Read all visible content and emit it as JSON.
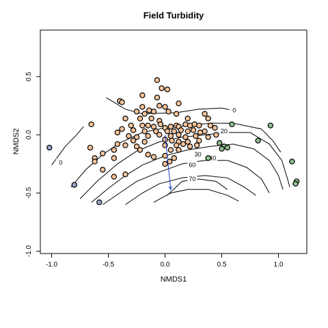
{
  "chart_data": {
    "type": "scatter",
    "title": "Field Turbidity",
    "xlabel": "NMDS1",
    "ylabel": "NMDS2",
    "xlim": [
      -1.1,
      1.25
    ],
    "ylim": [
      -1.02,
      0.9
    ],
    "x_ticks": [
      -1.0,
      -0.5,
      0.0,
      0.5,
      1.0
    ],
    "x_tick_labels": [
      "-1.0",
      "-0.5",
      "0.0",
      "0.5",
      "1.0"
    ],
    "y_ticks": [
      -1.0,
      -0.5,
      0.0,
      0.5
    ],
    "y_tick_labels": [
      "-1.0",
      "-0.5",
      "0.0",
      "0.5"
    ],
    "grid": false,
    "legend": "none",
    "colors": {
      "orange": "#f5c39a",
      "green": "#8fbc8f",
      "blue": "#9aa4c8",
      "contour": "#000000",
      "vector": "#1a3ccc"
    },
    "vector": {
      "from": [
        0.0,
        0.0
      ],
      "to": [
        0.05,
        -0.47
      ]
    },
    "contour_labels": [
      {
        "text": "0",
        "x": 0.61,
        "y": 0.21
      },
      {
        "text": "20",
        "x": 0.52,
        "y": 0.03
      },
      {
        "text": "40",
        "x": 0.42,
        "y": -0.2
      },
      {
        "text": "60",
        "x": 0.24,
        "y": -0.26
      },
      {
        "text": "70",
        "x": 0.24,
        "y": -0.38
      },
      {
        "text": "0",
        "x": -0.92,
        "y": -0.24
      },
      {
        "text": "30",
        "x": 0.29,
        "y": -0.17
      }
    ],
    "contours": [
      [
        [
          -1.0,
          -0.26
        ],
        [
          -0.88,
          -0.1
        ],
        [
          -0.78,
          0.0
        ],
        [
          -0.72,
          0.07
        ]
      ],
      [
        [
          -0.52,
          0.32
        ],
        [
          -0.35,
          0.22
        ],
        [
          -0.2,
          0.18
        ],
        [
          0.1,
          0.19
        ],
        [
          0.3,
          0.22
        ],
        [
          0.5,
          0.23
        ],
        [
          0.65,
          0.2
        ]
      ],
      [
        [
          -0.83,
          -0.45
        ],
        [
          -0.7,
          -0.3
        ],
        [
          -0.55,
          -0.17
        ],
        [
          -0.4,
          -0.07
        ],
        [
          -0.2,
          0.02
        ],
        [
          0.0,
          0.06
        ],
        [
          0.2,
          0.08
        ],
        [
          0.4,
          0.1
        ],
        [
          0.6,
          0.1
        ],
        [
          0.85,
          0.05
        ],
        [
          0.95,
          -0.05
        ],
        [
          1.02,
          -0.15
        ]
      ],
      [
        [
          -0.75,
          -0.55
        ],
        [
          -0.6,
          -0.4
        ],
        [
          -0.42,
          -0.25
        ],
        [
          -0.25,
          -0.14
        ],
        [
          -0.05,
          -0.06
        ],
        [
          0.15,
          -0.02
        ],
        [
          0.35,
          0.0
        ],
        [
          0.55,
          0.02
        ],
        [
          0.75,
          0.02
        ],
        [
          0.92,
          -0.08
        ],
        [
          1.03,
          -0.22
        ],
        [
          1.08,
          -0.38
        ],
        [
          1.1,
          -0.45
        ]
      ],
      [
        [
          -0.65,
          -0.58
        ],
        [
          -0.5,
          -0.46
        ],
        [
          -0.35,
          -0.35
        ],
        [
          -0.2,
          -0.26
        ],
        [
          0.0,
          -0.18
        ],
        [
          0.2,
          -0.13
        ],
        [
          0.4,
          -0.1
        ],
        [
          0.6,
          -0.08
        ],
        [
          0.78,
          -0.12
        ],
        [
          0.92,
          -0.22
        ],
        [
          1.0,
          -0.35
        ],
        [
          1.04,
          -0.47
        ]
      ],
      [
        [
          -0.55,
          -0.6
        ],
        [
          -0.4,
          -0.5
        ],
        [
          -0.25,
          -0.4
        ],
        [
          -0.05,
          -0.32
        ],
        [
          0.15,
          -0.25
        ],
        [
          0.35,
          -0.22
        ],
        [
          0.55,
          -0.22
        ],
        [
          0.72,
          -0.28
        ],
        [
          0.85,
          -0.38
        ],
        [
          0.92,
          -0.5
        ]
      ],
      [
        [
          -0.35,
          -0.6
        ],
        [
          -0.2,
          -0.5
        ],
        [
          -0.05,
          -0.42
        ],
        [
          0.15,
          -0.37
        ],
        [
          0.35,
          -0.35
        ],
        [
          0.55,
          -0.37
        ],
        [
          0.7,
          -0.45
        ],
        [
          0.8,
          -0.52
        ]
      ],
      [
        [
          -0.1,
          -0.58
        ],
        [
          0.05,
          -0.5
        ],
        [
          0.2,
          -0.47
        ],
        [
          0.38,
          -0.47
        ],
        [
          0.55,
          -0.52
        ],
        [
          0.65,
          -0.57
        ]
      ],
      [
        [
          0.02,
          -0.52
        ],
        [
          0.15,
          -0.4
        ],
        [
          0.3,
          -0.38
        ],
        [
          0.45,
          -0.4
        ],
        [
          0.55,
          -0.47
        ]
      ]
    ],
    "series": [
      {
        "color": "#f5c39a",
        "points": [
          [
            -0.07,
            0.47
          ],
          [
            -0.03,
            0.4
          ],
          [
            0.02,
            0.39
          ],
          [
            -0.2,
            0.34
          ],
          [
            -0.07,
            0.32
          ],
          [
            -0.4,
            0.29
          ],
          [
            -0.38,
            0.28
          ],
          [
            0.12,
            0.27
          ],
          [
            -0.2,
            0.24
          ],
          [
            -0.05,
            0.25
          ],
          [
            0.0,
            0.24
          ],
          [
            -0.14,
            0.21
          ],
          [
            -0.25,
            0.2
          ],
          [
            -0.1,
            0.2
          ],
          [
            -0.18,
            0.18
          ],
          [
            0.03,
            0.2
          ],
          [
            0.1,
            0.18
          ],
          [
            0.35,
            0.18
          ],
          [
            0.38,
            0.14
          ],
          [
            -0.35,
            0.14
          ],
          [
            -0.22,
            0.14
          ],
          [
            -0.12,
            0.14
          ],
          [
            -0.05,
            0.12
          ],
          [
            0.2,
            0.14
          ],
          [
            -0.65,
            0.09
          ],
          [
            -0.3,
            0.08
          ],
          [
            -0.2,
            0.08
          ],
          [
            -0.15,
            0.08
          ],
          [
            -0.1,
            0.07
          ],
          [
            -0.04,
            0.09
          ],
          [
            0.0,
            0.06
          ],
          [
            0.05,
            0.07
          ],
          [
            0.1,
            0.08
          ],
          [
            0.12,
            0.07
          ],
          [
            0.18,
            0.09
          ],
          [
            0.22,
            0.08
          ],
          [
            0.26,
            0.09
          ],
          [
            0.3,
            0.08
          ],
          [
            0.4,
            0.08
          ],
          [
            0.44,
            0.06
          ],
          [
            -0.38,
            0.05
          ],
          [
            -0.28,
            0.04
          ],
          [
            -0.18,
            0.03
          ],
          [
            -0.08,
            0.03
          ],
          [
            0.02,
            0.03
          ],
          [
            0.08,
            0.03
          ],
          [
            0.14,
            0.04
          ],
          [
            0.2,
            0.03
          ],
          [
            0.25,
            0.04
          ],
          [
            0.35,
            0.03
          ],
          [
            0.45,
            0.0
          ],
          [
            0.31,
            0.02
          ],
          [
            -0.42,
            0.02
          ],
          [
            -0.32,
            -0.01
          ],
          [
            -0.25,
            -0.02
          ],
          [
            -0.15,
            -0.01
          ],
          [
            -0.05,
            0.0
          ],
          [
            0.05,
            -0.01
          ],
          [
            0.12,
            0.0
          ],
          [
            0.18,
            -0.02
          ],
          [
            0.27,
            -0.01
          ],
          [
            0.38,
            -0.02
          ],
          [
            -0.28,
            -0.05
          ],
          [
            -0.18,
            -0.06
          ],
          [
            0.0,
            -0.04
          ],
          [
            0.06,
            -0.05
          ],
          [
            0.12,
            -0.06
          ],
          [
            0.2,
            -0.06
          ],
          [
            0.3,
            -0.05
          ],
          [
            -0.42,
            -0.08
          ],
          [
            -0.35,
            -0.09
          ],
          [
            -0.25,
            -0.1
          ],
          [
            0.0,
            -0.09
          ],
          [
            0.1,
            -0.09
          ],
          [
            0.16,
            -0.08
          ],
          [
            0.22,
            -0.1
          ],
          [
            0.28,
            -0.09
          ],
          [
            -0.66,
            -0.11
          ],
          [
            -0.45,
            -0.13
          ],
          [
            -0.22,
            -0.13
          ],
          [
            0.05,
            -0.13
          ],
          [
            0.12,
            -0.13
          ],
          [
            -0.55,
            -0.16
          ],
          [
            -0.15,
            -0.17
          ],
          [
            0.0,
            -0.18
          ],
          [
            -0.1,
            -0.19
          ],
          [
            0.08,
            -0.2
          ],
          [
            -0.62,
            -0.2
          ],
          [
            -0.45,
            -0.2
          ],
          [
            0.04,
            -0.23
          ],
          [
            -0.62,
            -0.23
          ],
          [
            -0.55,
            -0.3
          ],
          [
            -0.35,
            -0.34
          ],
          [
            -0.45,
            -0.36
          ],
          [
            0.0,
            -0.25
          ]
        ]
      },
      {
        "color": "#8fbc8f",
        "points": [
          [
            0.59,
            0.09
          ],
          [
            0.93,
            0.08
          ],
          [
            0.82,
            -0.05
          ],
          [
            0.48,
            -0.07
          ],
          [
            0.52,
            -0.1
          ],
          [
            0.55,
            -0.11
          ],
          [
            0.5,
            -0.12
          ],
          [
            0.38,
            -0.2
          ],
          [
            1.12,
            -0.23
          ],
          [
            1.16,
            -0.4
          ],
          [
            1.15,
            -0.42
          ]
        ]
      },
      {
        "color": "#9aa4c8",
        "points": [
          [
            -1.02,
            -0.11
          ],
          [
            -0.8,
            -0.43
          ],
          [
            -0.58,
            -0.58
          ]
        ]
      }
    ]
  }
}
